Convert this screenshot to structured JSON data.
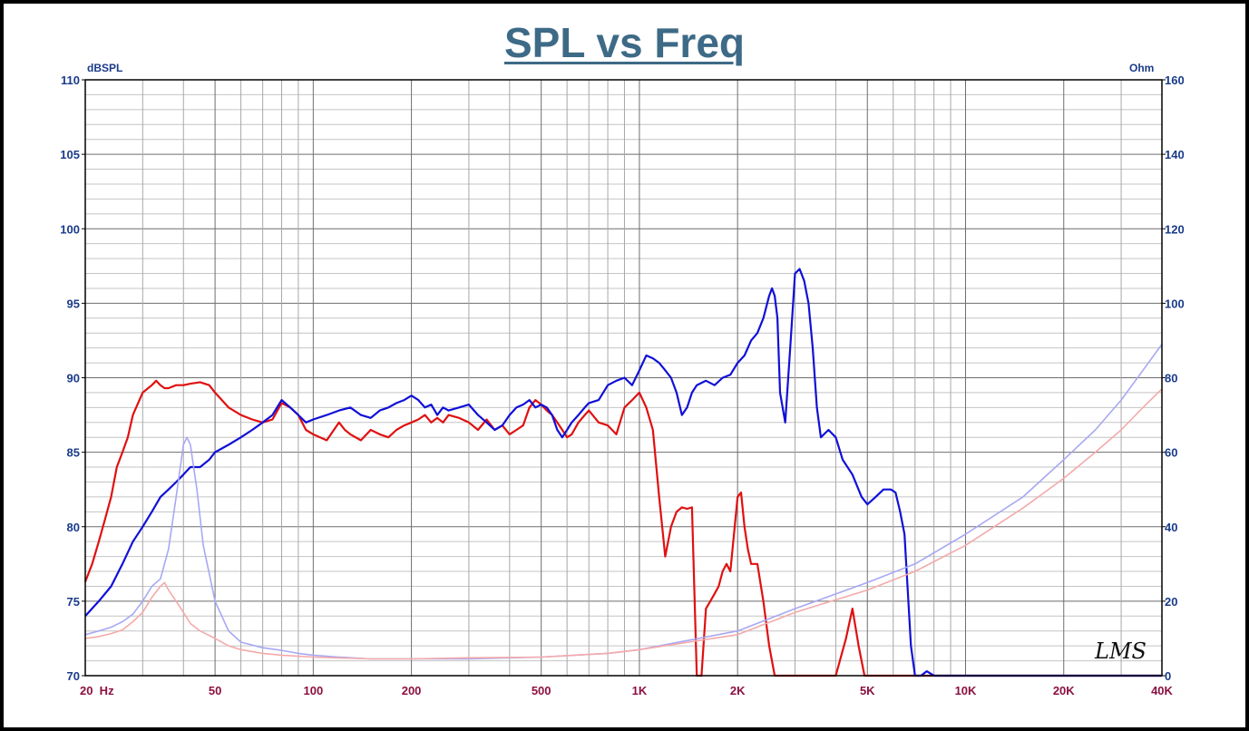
{
  "chart_data": {
    "type": "line",
    "title": "SPL vs Freq",
    "ylabel_left": "dBSPL",
    "ylabel_right": "Ohm",
    "x_scale": "log",
    "xlim": [
      20,
      40000
    ],
    "ylim_left": [
      70,
      110
    ],
    "ylim_right": [
      0,
      160
    ],
    "grid": true,
    "x_ticks": [
      {
        "value": 20,
        "label": "20  Hz"
      },
      {
        "value": 50,
        "label": "50"
      },
      {
        "value": 100,
        "label": "100"
      },
      {
        "value": 200,
        "label": "200"
      },
      {
        "value": 500,
        "label": "500"
      },
      {
        "value": 1000,
        "label": "1K"
      },
      {
        "value": 2000,
        "label": "2K"
      },
      {
        "value": 5000,
        "label": "5K"
      },
      {
        "value": 10000,
        "label": "10K"
      },
      {
        "value": 20000,
        "label": "20K"
      },
      {
        "value": 40000,
        "label": "40K"
      }
    ],
    "y_ticks_left": [
      "110",
      "105",
      "100",
      "95",
      "90",
      "85",
      "80",
      "75",
      "70"
    ],
    "y_ticks_right": [
      "160",
      "140",
      "120",
      "100",
      "80",
      "60",
      "40",
      "20",
      "0"
    ],
    "series": [
      {
        "color": "#e01010",
        "axis": "left",
        "x": [
          20,
          21,
          22,
          23,
          24,
          25,
          26,
          27,
          28,
          30,
          32,
          33,
          34,
          35,
          36,
          38,
          40,
          42,
          45,
          48,
          50,
          55,
          60,
          65,
          70,
          75,
          80,
          85,
          90,
          95,
          100,
          110,
          120,
          125,
          130,
          140,
          150,
          160,
          170,
          180,
          190,
          200,
          210,
          220,
          230,
          240,
          250,
          260,
          280,
          300,
          320,
          340,
          360,
          380,
          400,
          420,
          440,
          460,
          480,
          500,
          520,
          540,
          560,
          580,
          600,
          620,
          650,
          680,
          700,
          750,
          800,
          850,
          900,
          950,
          1000,
          1050,
          1100,
          1150,
          1200,
          1250,
          1300,
          1350,
          1400,
          1450,
          1500,
          1550,
          1600,
          1650,
          1700,
          1750,
          1800,
          1850,
          1900,
          2000,
          2050,
          2100,
          2150,
          2200,
          2300,
          2400,
          2500,
          2600,
          2700,
          2800,
          3000,
          3500,
          4000,
          4300,
          4500,
          4700,
          4900,
          5000,
          5500,
          6000,
          7000,
          8000,
          10000,
          20000,
          40000
        ],
        "y": [
          76.3,
          77.5,
          79.0,
          80.5,
          82.0,
          84.0,
          85.0,
          86.0,
          87.5,
          89.0,
          89.5,
          89.8,
          89.5,
          89.3,
          89.3,
          89.5,
          89.5,
          89.6,
          89.7,
          89.5,
          89.0,
          88.0,
          87.5,
          87.2,
          87.0,
          87.2,
          88.3,
          88.0,
          87.5,
          86.5,
          86.2,
          85.8,
          87.0,
          86.5,
          86.2,
          85.8,
          86.5,
          86.2,
          86.0,
          86.5,
          86.8,
          87.0,
          87.2,
          87.5,
          87.0,
          87.3,
          87.0,
          87.5,
          87.3,
          87.0,
          86.5,
          87.2,
          86.5,
          86.8,
          86.2,
          86.5,
          86.8,
          88.0,
          88.5,
          88.2,
          87.8,
          87.5,
          87.0,
          86.5,
          86.0,
          86.2,
          87.0,
          87.5,
          87.8,
          87.0,
          86.8,
          86.2,
          88.0,
          88.5,
          89.0,
          88.0,
          86.5,
          82.0,
          78.0,
          80.0,
          81.0,
          81.3,
          81.2,
          81.3,
          70.0,
          70.0,
          74.5,
          75.0,
          75.5,
          76.0,
          77.0,
          77.5,
          77.0,
          82.0,
          82.3,
          80.0,
          78.5,
          77.5,
          77.5,
          75.0,
          72.0,
          70.0,
          70.0,
          70.0,
          70.0,
          70.0,
          70.0,
          72.5,
          74.5,
          72.0,
          70.0,
          70.0,
          70.0,
          70.0,
          70.0,
          70.0,
          70.0,
          70.0,
          70.0
        ]
      },
      {
        "color": "#1010d8",
        "axis": "left",
        "x": [
          20,
          22,
          24,
          26,
          28,
          30,
          32,
          34,
          36,
          38,
          40,
          42,
          45,
          48,
          50,
          55,
          60,
          65,
          70,
          75,
          80,
          85,
          90,
          95,
          100,
          110,
          120,
          130,
          140,
          150,
          160,
          170,
          180,
          190,
          200,
          210,
          220,
          230,
          240,
          250,
          260,
          280,
          300,
          320,
          340,
          360,
          380,
          400,
          420,
          440,
          460,
          480,
          500,
          520,
          540,
          560,
          580,
          600,
          620,
          650,
          680,
          700,
          750,
          800,
          850,
          900,
          950,
          1000,
          1050,
          1100,
          1150,
          1200,
          1250,
          1300,
          1350,
          1400,
          1450,
          1500,
          1600,
          1700,
          1800,
          1900,
          2000,
          2100,
          2200,
          2300,
          2400,
          2500,
          2550,
          2600,
          2650,
          2700,
          2800,
          2900,
          3000,
          3100,
          3200,
          3300,
          3400,
          3500,
          3600,
          3800,
          4000,
          4200,
          4500,
          4800,
          5000,
          5300,
          5600,
          5900,
          6100,
          6300,
          6500,
          6800,
          7000,
          7300,
          7600,
          8000,
          10000,
          20000,
          40000
        ],
        "y": [
          74.0,
          75.0,
          76.0,
          77.5,
          79.0,
          80.0,
          81.0,
          82.0,
          82.5,
          83.0,
          83.5,
          84.0,
          84.0,
          84.5,
          85.0,
          85.5,
          86.0,
          86.5,
          87.0,
          87.5,
          88.5,
          88.0,
          87.5,
          87.0,
          87.2,
          87.5,
          87.8,
          88.0,
          87.5,
          87.3,
          87.8,
          88.0,
          88.3,
          88.5,
          88.8,
          88.5,
          88.0,
          88.2,
          87.5,
          88.0,
          87.8,
          88.0,
          88.2,
          87.5,
          87.0,
          86.5,
          86.8,
          87.5,
          88.0,
          88.2,
          88.5,
          88.0,
          88.2,
          88.0,
          87.5,
          86.5,
          86.0,
          86.5,
          87.0,
          87.5,
          88.0,
          88.3,
          88.5,
          89.5,
          89.8,
          90.0,
          89.5,
          90.5,
          91.5,
          91.3,
          91.0,
          90.5,
          90.0,
          89.0,
          87.5,
          88.0,
          89.0,
          89.5,
          89.8,
          89.5,
          90.0,
          90.2,
          91.0,
          91.5,
          92.5,
          93.0,
          94.0,
          95.5,
          96.0,
          95.5,
          94.0,
          89.0,
          87.0,
          92.0,
          97.0,
          97.3,
          96.5,
          95.0,
          92.0,
          88.0,
          86.0,
          86.5,
          86.0,
          84.5,
          83.5,
          82.0,
          81.5,
          82.0,
          82.5,
          82.5,
          82.3,
          81.0,
          79.5,
          72.0,
          70.0,
          70.0,
          70.3,
          70.0,
          70.0,
          70.0,
          70.0
        ]
      },
      {
        "color": "#a8a8f4",
        "axis": "right",
        "x": [
          20,
          22,
          24,
          26,
          28,
          30,
          32,
          34,
          36,
          38,
          40,
          41,
          42,
          44,
          46,
          50,
          55,
          60,
          70,
          80,
          90,
          100,
          120,
          150,
          200,
          300,
          500,
          800,
          1000,
          2000,
          3000,
          5000,
          7000,
          10000,
          15000,
          20000,
          25000,
          30000,
          35000,
          40000
        ],
        "y": [
          11,
          12,
          13,
          14.5,
          16.5,
          20,
          24,
          26,
          34,
          48,
          62,
          64,
          62,
          50,
          35,
          20,
          12,
          9,
          7.5,
          6.8,
          6,
          5.5,
          5,
          4.5,
          4.5,
          4.5,
          5,
          6,
          7,
          12,
          18,
          25,
          30,
          38,
          48,
          58,
          66,
          74,
          82,
          89
        ]
      },
      {
        "color": "#f4aaaa",
        "axis": "right",
        "x": [
          20,
          22,
          24,
          26,
          28,
          30,
          32,
          34,
          35,
          36,
          38,
          40,
          42,
          45,
          50,
          55,
          60,
          70,
          80,
          100,
          150,
          200,
          300,
          500,
          800,
          1000,
          2000,
          3000,
          5000,
          7000,
          10000,
          15000,
          20000,
          25000,
          30000,
          35000,
          40000
        ],
        "y": [
          10,
          10.5,
          11.3,
          12.3,
          14.5,
          17,
          21,
          24,
          25,
          23,
          20,
          17,
          14,
          12,
          10,
          8,
          7,
          6,
          5.5,
          5,
          4.5,
          4.5,
          4.8,
          5,
          6,
          7,
          11,
          17,
          23,
          28,
          35,
          45,
          53,
          60,
          66,
          72,
          77
        ]
      }
    ]
  }
}
